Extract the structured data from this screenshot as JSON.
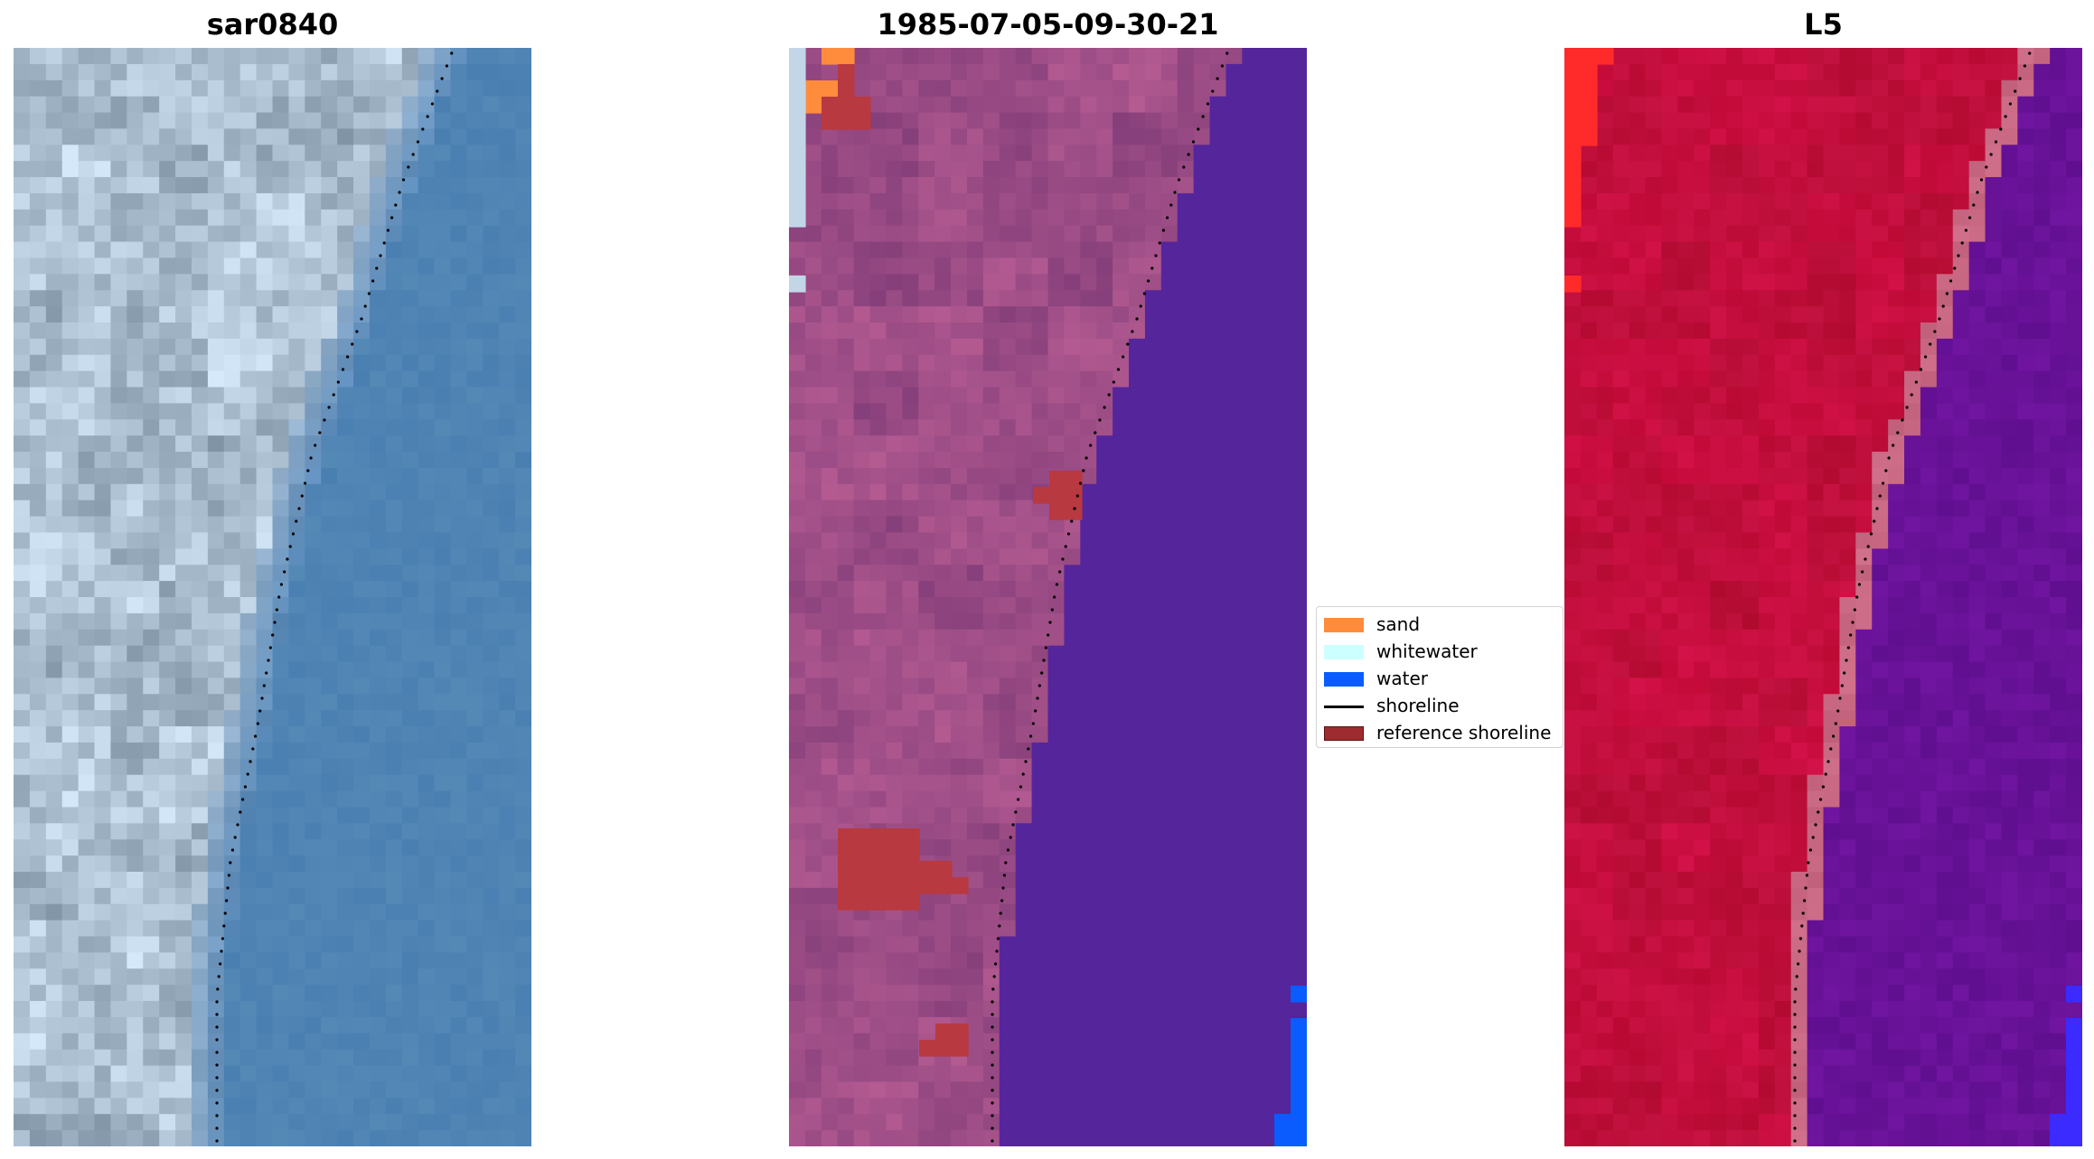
{
  "panels": [
    {
      "title": "sar0840",
      "kind": "rgb-image"
    },
    {
      "title": "1985-07-05-09-30-21",
      "kind": "classified-image"
    },
    {
      "title": "L5",
      "kind": "index-image"
    }
  ],
  "legend": {
    "items": [
      {
        "label": "sand",
        "color": "#ff8c3c",
        "type": "patch"
      },
      {
        "label": "whitewater",
        "color": "#ccffff",
        "type": "patch"
      },
      {
        "label": "water",
        "color": "#0a5cff",
        "type": "patch"
      },
      {
        "label": "shoreline",
        "color": "#000000",
        "type": "line"
      },
      {
        "label": "reference shoreline",
        "color": "#9e2b2f",
        "type": "patch"
      }
    ]
  },
  "colors": {
    "rgb_land": "#b9cadb",
    "rgb_water": "#4f84b4",
    "cls_land": "#9d4d86",
    "cls_water": "#55259b",
    "cls_reference": "#b8393f",
    "idx_land": "#c20d3c",
    "idx_water": "#6a1099",
    "idx_transition": "#c5637f",
    "shoreline_points": "#000000"
  }
}
